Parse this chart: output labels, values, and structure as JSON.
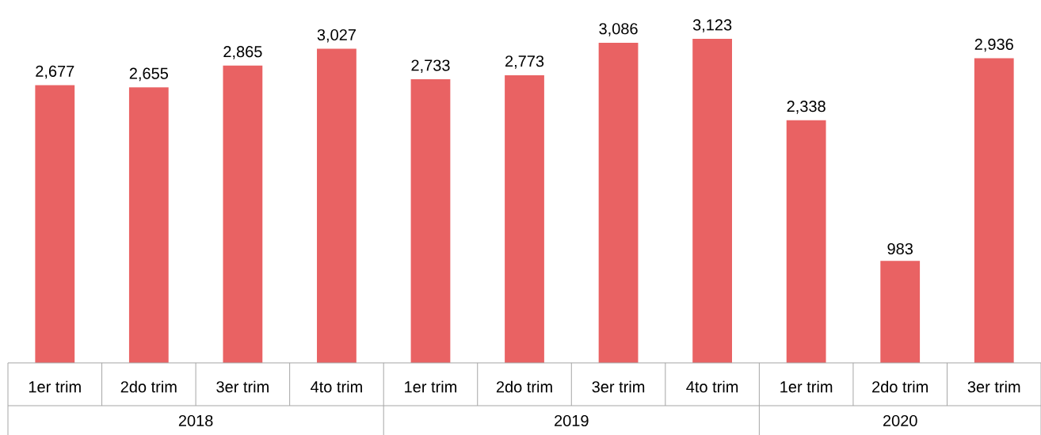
{
  "chart_data": {
    "type": "bar",
    "categories": [
      "1er trim",
      "2do trim",
      "3er trim",
      "4to trim",
      "1er trim",
      "2do trim",
      "3er trim",
      "4to trim",
      "1er trim",
      "2do trim",
      "3er trim"
    ],
    "values": [
      2677,
      2655,
      2865,
      3027,
      2733,
      2773,
      3086,
      3123,
      2338,
      983,
      2936
    ],
    "value_labels": [
      "2,677",
      "2,655",
      "2,865",
      "3,027",
      "2,733",
      "2,773",
      "3,086",
      "3,123",
      "2,338",
      "983",
      "2,936"
    ],
    "color": "#e96263",
    "annotations": [
      "2018",
      "2019",
      "2020"
    ]
  }
}
